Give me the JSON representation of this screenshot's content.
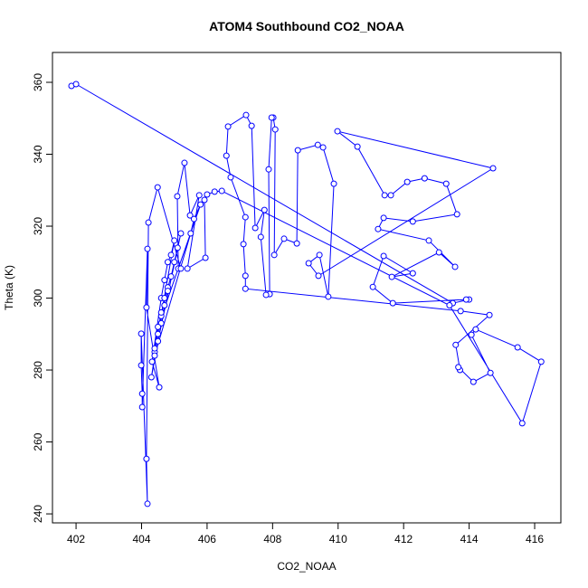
{
  "chart_data": {
    "type": "line",
    "title": "ATOM4 Southbound CO2_NOAA",
    "x_label": "CO2_NOAA",
    "y_label": "Theta (K)",
    "xlim": [
      401.28,
      416.8
    ],
    "ylim": [
      237.5,
      368.3
    ],
    "xticks": [
      402,
      404,
      406,
      408,
      410,
      412,
      414,
      416
    ],
    "yticks": [
      240,
      260,
      280,
      300,
      320,
      340,
      360
    ],
    "series": [
      {
        "name": "CO2_NOAA",
        "color": "#0000ff",
        "x": [
          401.86,
          402.0,
          413.5,
          414.0,
          413.91,
          411.67,
          411.06,
          411.39,
          412.28,
          411.64,
          413.08,
          413.57,
          412.77,
          411.22,
          411.39,
          412.28,
          413.63,
          413.3,
          412.64,
          412.11,
          411.61,
          411.42,
          410.59,
          409.98,
          414.73,
          409.4,
          409.1,
          409.43,
          409.7,
          409.87,
          409.54,
          409.38,
          408.77,
          408.74,
          408.35,
          408.05,
          408.08,
          408.02,
          407.97,
          407.88,
          407.91,
          407.8,
          407.64,
          407.75,
          407.47,
          407.36,
          407.19,
          406.64,
          406.59,
          406.72,
          407.17,
          407.11,
          407.17,
          407.17,
          413.74,
          414.62,
          413.59,
          413.72,
          413.67,
          414.13,
          414.65,
          414.07,
          414.2,
          415.48,
          416.2,
          415.62,
          413.4,
          406.45,
          406.23,
          406.0,
          405.92,
          405.95,
          405.4,
          405.76,
          405.48,
          405.31,
          405.09,
          405.12,
          405.2,
          404.49,
          404.21,
          404.15,
          404.18,
          403.99,
          403.99,
          404.02,
          404.02,
          404.18,
          404.15,
          404.54,
          404.32,
          404.6,
          404.7,
          404.8,
          404.9,
          405.0,
          404.4,
          404.5,
          404.6,
          404.7,
          404.8,
          404.9,
          405.0,
          405.1,
          405.2,
          404.5,
          404.6,
          404.7,
          404.3,
          404.4,
          405.5,
          405.6,
          405.8,
          404.5,
          404.4,
          404.6,
          404.8
        ],
        "y": [
          359.0,
          359.5,
          298.6,
          299.6,
          299.6,
          298.6,
          303.1,
          311.7,
          306.9,
          305.9,
          312.7,
          308.7,
          316.0,
          319.2,
          322.3,
          321.3,
          323.3,
          331.8,
          333.3,
          332.3,
          328.6,
          328.6,
          342.1,
          346.4,
          336.1,
          306.2,
          309.7,
          312.0,
          300.4,
          331.8,
          341.9,
          342.6,
          341.1,
          315.2,
          316.5,
          312.0,
          346.9,
          350.2,
          350.2,
          335.8,
          301.1,
          300.9,
          317.0,
          324.5,
          319.5,
          347.9,
          350.9,
          347.7,
          339.6,
          333.6,
          322.5,
          315.0,
          306.2,
          302.6,
          296.4,
          295.3,
          287.0,
          280.0,
          280.8,
          276.7,
          279.2,
          289.8,
          291.3,
          286.3,
          282.3,
          265.2,
          298.0,
          329.8,
          329.6,
          328.8,
          327.3,
          311.2,
          308.2,
          328.6,
          323.0,
          337.6,
          328.3,
          308.2,
          308.2,
          330.8,
          321.0,
          255.3,
          242.8,
          290.1,
          281.3,
          273.4,
          269.7,
          313.7,
          297.4,
          275.2,
          282.3,
          300.0,
          305.0,
          310.0,
          312.0,
          316.0,
          285.0,
          290.0,
          295.0,
          300.0,
          303.0,
          306.0,
          310.0,
          314.0,
          318.0,
          288.0,
          293.0,
          298.0,
          278.0,
          284.0,
          318.0,
          322.0,
          326.0,
          292.0,
          286.0,
          296.0,
          302.0
        ]
      }
    ]
  }
}
